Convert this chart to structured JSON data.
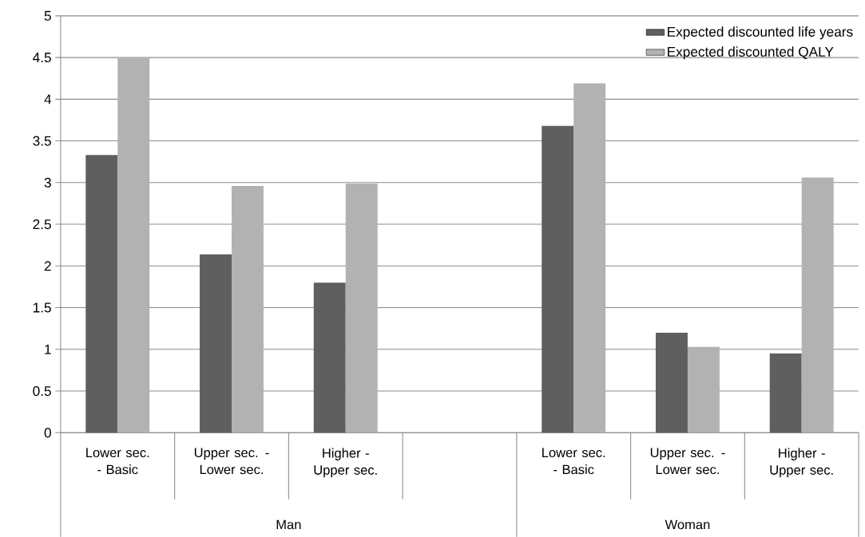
{
  "chart_data": {
    "type": "bar",
    "categories": [
      "Lower sec. - Basic",
      "Upper sec. - Lower sec.",
      "Higher - Upper sec.",
      null,
      "Lower sec. - Basic",
      "Upper sec. - Lower sec.",
      "Higher - Upper sec."
    ],
    "series": [
      {
        "name": "Expected discounted life years",
        "color": "#5f5f5f",
        "values": [
          3.33,
          2.14,
          1.8,
          null,
          3.68,
          1.2,
          0.95
        ]
      },
      {
        "name": "Expected discounted QALY",
        "color": "#b2b2b2",
        "values": [
          4.5,
          2.96,
          2.99,
          null,
          4.19,
          1.03,
          3.06
        ]
      }
    ],
    "ylim": [
      0,
      5
    ],
    "yticks": [
      0,
      0.5,
      1,
      1.5,
      2,
      2.5,
      3,
      3.5,
      4,
      4.5,
      5
    ],
    "grid": "y",
    "legend": "top right",
    "annotations": [
      "Man",
      "Woman"
    ]
  }
}
